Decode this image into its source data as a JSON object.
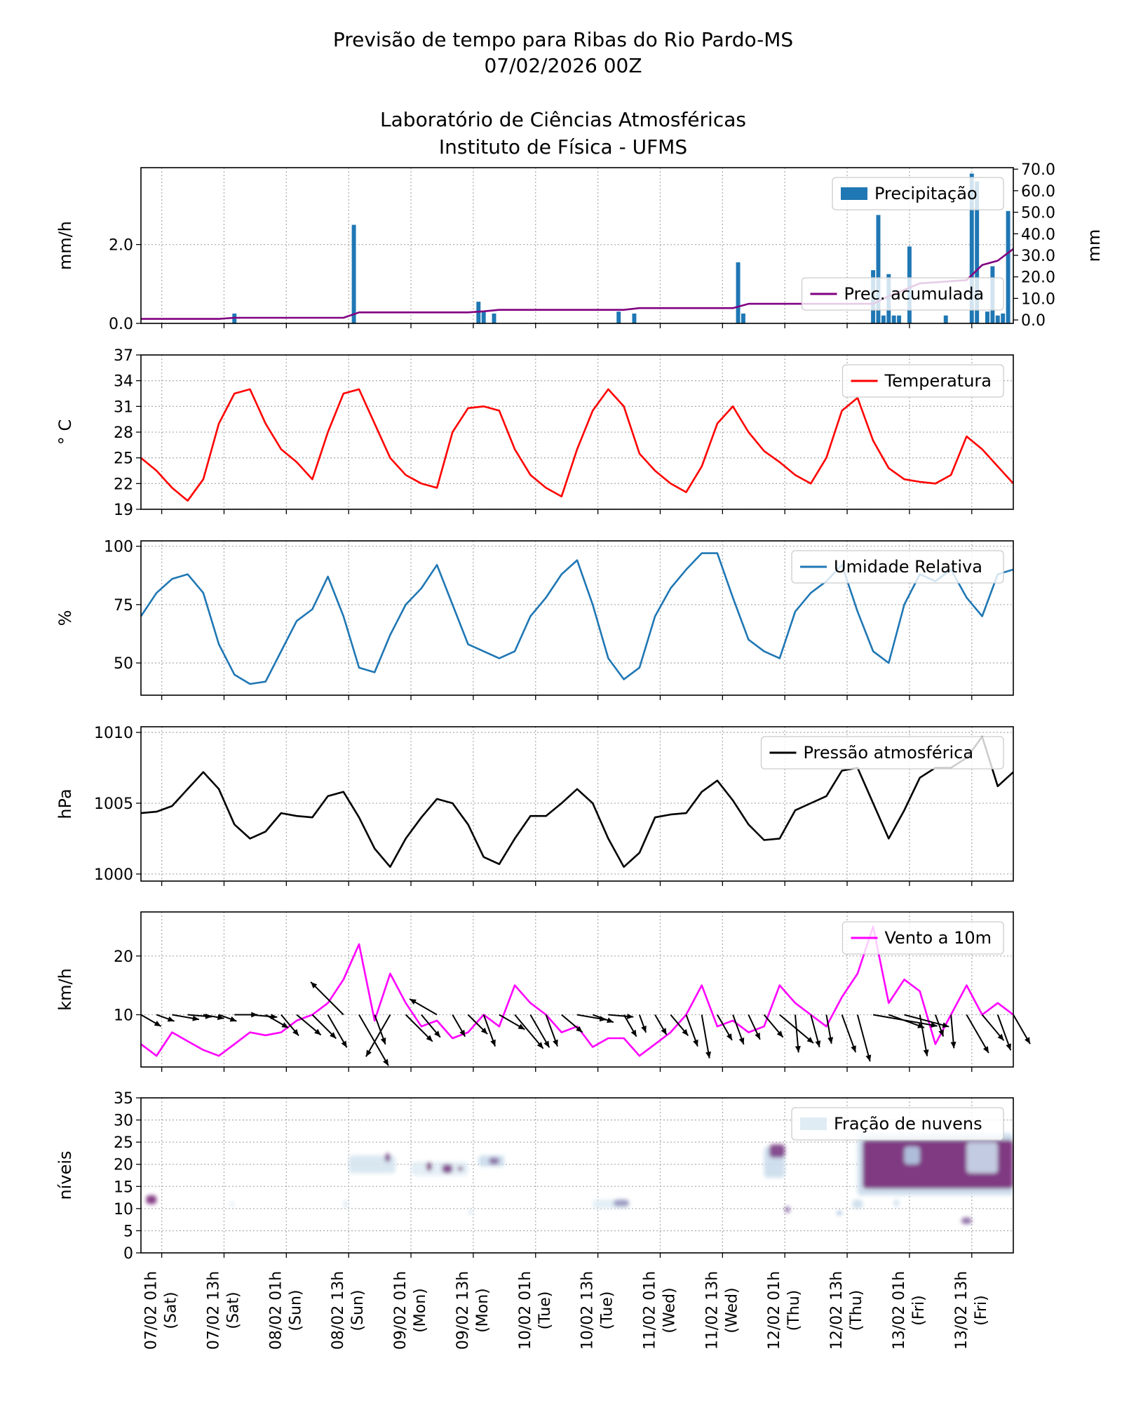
{
  "header": {
    "title_line1": "Previsão de tempo para Ribas do Rio Pardo-MS",
    "title_line2": "07/02/2026 00Z",
    "title_line3": "Laboratório de Ciências Atmosféricas",
    "title_line4": "Instituto de Física - UFMS"
  },
  "x_axis": {
    "range": [
      "06/02 21h",
      "13/02 21h"
    ],
    "ticks": [
      {
        "label": "07/02 01h",
        "day": "(Sat)"
      },
      {
        "label": "07/02 13h",
        "day": "(Sat)"
      },
      {
        "label": "08/02 01h",
        "day": "(Sun)"
      },
      {
        "label": "08/02 13h",
        "day": "(Sun)"
      },
      {
        "label": "09/02 01h",
        "day": "(Mon)"
      },
      {
        "label": "09/02 13h",
        "day": "(Mon)"
      },
      {
        "label": "10/02 01h",
        "day": "(Tue)"
      },
      {
        "label": "10/02 13h",
        "day": "(Tue)"
      },
      {
        "label": "11/02 01h",
        "day": "(Wed)"
      },
      {
        "label": "11/02 13h",
        "day": "(Wed)"
      },
      {
        "label": "12/02 01h",
        "day": "(Thu)"
      },
      {
        "label": "12/02 13h",
        "day": "(Thu)"
      },
      {
        "label": "13/02 01h",
        "day": "(Fri)"
      },
      {
        "label": "13/02 13h",
        "day": "(Fri)"
      }
    ]
  },
  "times": [
    "06/02 21h",
    "07/02 00h",
    "07/02 03h",
    "07/02 06h",
    "07/02 09h",
    "07/02 12h",
    "07/02 15h",
    "07/02 18h",
    "07/02 21h",
    "08/02 00h",
    "08/02 03h",
    "08/02 06h",
    "08/02 09h",
    "08/02 12h",
    "08/02 15h",
    "08/02 18h",
    "08/02 21h",
    "09/02 00h",
    "09/02 03h",
    "09/02 06h",
    "09/02 09h",
    "09/02 12h",
    "09/02 15h",
    "09/02 18h",
    "09/02 21h",
    "10/02 00h",
    "10/02 03h",
    "10/02 06h",
    "10/02 09h",
    "10/02 12h",
    "10/02 15h",
    "10/02 18h",
    "10/02 21h",
    "11/02 00h",
    "11/02 03h",
    "11/02 06h",
    "11/02 09h",
    "11/02 12h",
    "11/02 15h",
    "11/02 18h",
    "11/02 21h",
    "12/02 00h",
    "12/02 03h",
    "12/02 06h",
    "12/02 09h",
    "12/02 12h",
    "12/02 15h",
    "12/02 18h",
    "12/02 21h",
    "13/02 00h",
    "13/02 03h",
    "13/02 06h",
    "13/02 09h",
    "13/02 12h",
    "13/02 15h",
    "13/02 18h",
    "13/02 21h"
  ],
  "chart_data": [
    {
      "type": "bar",
      "ylabel": "mm/h",
      "ylabel_right": "mm",
      "ylim": [
        0,
        3.95
      ],
      "yticks": [
        "0.0",
        "2.0"
      ],
      "ylim_right": [
        -1.6,
        70.7
      ],
      "yticks_right": [
        "0.0",
        "10.0",
        "20.0",
        "30.0",
        "40.0",
        "50.0",
        "60.0",
        "70.0"
      ],
      "grid": true,
      "legend": [
        {
          "label": "Precipitação",
          "placement": "upper right",
          "color": "#1f77b4"
        },
        {
          "label": "Prec. acumulada",
          "placement": "lower right",
          "color": "#800080"
        }
      ],
      "bars": [
        {
          "time": "07/02 15h",
          "value": 0.25
        },
        {
          "time": "08/02 14h",
          "value": 2.5
        },
        {
          "time": "09/02 14h",
          "value": 0.55
        },
        {
          "time": "09/02 15h",
          "value": 0.3
        },
        {
          "time": "09/02 17h",
          "value": 0.25
        },
        {
          "time": "10/02 17h",
          "value": 0.3
        },
        {
          "time": "10/02 20h",
          "value": 0.25
        },
        {
          "time": "11/02 16h",
          "value": 1.55
        },
        {
          "time": "11/02 17h",
          "value": 0.25
        },
        {
          "time": "12/02 18h",
          "value": 1.35
        },
        {
          "time": "12/02 19h",
          "value": 2.75
        },
        {
          "time": "12/02 20h",
          "value": 0.2
        },
        {
          "time": "12/02 21h",
          "value": 1.25
        },
        {
          "time": "12/02 22h",
          "value": 0.2
        },
        {
          "time": "12/02 23h",
          "value": 0.2
        },
        {
          "time": "13/02 01h",
          "value": 1.95
        },
        {
          "time": "13/02 08h",
          "value": 0.2
        },
        {
          "time": "13/02 13h",
          "value": 3.8
        },
        {
          "time": "13/02 14h",
          "value": 3.6
        },
        {
          "time": "13/02 16h",
          "value": 0.3
        },
        {
          "time": "13/02 17h",
          "value": 1.45
        },
        {
          "time": "13/02 18h",
          "value": 0.2
        },
        {
          "time": "13/02 19h",
          "value": 0.25
        },
        {
          "time": "13/02 20h",
          "value": 2.85
        }
      ],
      "accumulated": [
        0.5,
        0.5,
        0.5,
        0.5,
        0.5,
        0.5,
        1,
        1,
        1,
        1,
        1,
        1,
        1,
        1,
        3.5,
        3.5,
        3.5,
        3.5,
        3.5,
        3.5,
        3.5,
        3.5,
        4,
        4.7,
        4.7,
        4.7,
        4.7,
        4.7,
        4.7,
        4.7,
        4.7,
        4.7,
        5.5,
        5.5,
        5.5,
        5.5,
        5.5,
        5.5,
        5.5,
        7.5,
        7.5,
        7.5,
        7.5,
        7.5,
        7.5,
        7.5,
        7.5,
        7.5,
        11,
        14,
        17,
        17.5,
        18,
        18.5,
        25.5,
        27.5,
        33
      ]
    },
    {
      "type": "line",
      "ylabel": "° C",
      "ylim": [
        19,
        37
      ],
      "yticks": [
        "19",
        "22",
        "25",
        "28",
        "31",
        "34",
        "37"
      ],
      "grid": true,
      "legend": [
        {
          "label": "Temperatura",
          "placement": "upper right",
          "color": "#ff0000"
        }
      ],
      "values": [
        25,
        23.5,
        21.5,
        20,
        22.5,
        29,
        32.5,
        33,
        29,
        26,
        24.5,
        22.5,
        28,
        32.5,
        33,
        29,
        25,
        23,
        22,
        21.5,
        28,
        30.8,
        31,
        30.5,
        26,
        23,
        21.5,
        20.5,
        26,
        30.5,
        33,
        31,
        25.5,
        23.5,
        22,
        21,
        24,
        29,
        31,
        28,
        25.8,
        24.5,
        23,
        22,
        25,
        30.5,
        32,
        27,
        23.8,
        22.5,
        22.2,
        22,
        23,
        27.5,
        26,
        24,
        22
      ]
    },
    {
      "type": "line",
      "ylabel": "%",
      "ylim": [
        36.2,
        102.3
      ],
      "yticks": [
        "50",
        "75",
        "100"
      ],
      "grid": true,
      "legend": [
        {
          "label": "Umidade Relativa",
          "placement": "upper right",
          "color": "#1f77b4"
        }
      ],
      "values": [
        70,
        80,
        86,
        88,
        80,
        58,
        45,
        41,
        42,
        55,
        68,
        73,
        87,
        70,
        48,
        46,
        62,
        75,
        82,
        92,
        75,
        58,
        55,
        52,
        55,
        70,
        78,
        88,
        94,
        75,
        52,
        43,
        48,
        70,
        82,
        90,
        97,
        97,
        78,
        60,
        55,
        52,
        72,
        80,
        85,
        92,
        72,
        55,
        50,
        75,
        88,
        85,
        90,
        78,
        70,
        88,
        90
      ]
    },
    {
      "type": "line",
      "ylabel": "hPa",
      "ylim": [
        999.5,
        1010.4
      ],
      "yticks": [
        "1000",
        "1005",
        "1010"
      ],
      "grid": true,
      "legend": [
        {
          "label": "Pressão atmosférica",
          "placement": "upper right",
          "color": "#000000"
        }
      ],
      "values": [
        1004.3,
        1004.4,
        1004.8,
        1006,
        1007.2,
        1006,
        1003.5,
        1002.5,
        1003,
        1004.3,
        1004.1,
        1004,
        1005.5,
        1005.8,
        1004,
        1001.8,
        1000.5,
        1002.5,
        1004,
        1005.3,
        1005,
        1003.5,
        1001.2,
        1000.7,
        1002.5,
        1004.1,
        1004.1,
        1005,
        1006,
        1005,
        1002.5,
        1000.5,
        1001.5,
        1004,
        1004.2,
        1004.3,
        1005.8,
        1006.6,
        1005.2,
        1003.5,
        1002.4,
        1002.5,
        1004.5,
        1005,
        1005.5,
        1007.3,
        1007.5,
        1005,
        1002.5,
        1004.5,
        1006.8,
        1007.5,
        1007.5,
        1008.2,
        1009.7,
        1006.2,
        1007.2
      ]
    },
    {
      "type": "line",
      "ylabel": "km/h",
      "ylim": [
        1.1,
        27.5
      ],
      "yticks": [
        "10",
        "20"
      ],
      "grid": true,
      "legend": [
        {
          "label": "Vento a 10m",
          "placement": "upper right",
          "color": "#ff00ff"
        }
      ],
      "values": [
        5,
        3,
        7,
        5.5,
        4,
        3,
        5,
        7,
        6.5,
        7,
        9,
        10,
        12,
        16,
        22,
        9,
        17,
        12,
        8,
        9,
        6,
        7,
        10,
        8,
        15,
        12,
        10,
        7,
        8,
        4.5,
        6,
        6,
        3,
        5,
        7,
        10,
        15,
        8,
        9,
        7,
        8,
        15,
        12,
        10,
        8,
        13,
        17,
        25,
        12,
        16,
        14,
        5,
        10,
        15,
        10,
        12,
        10
      ],
      "arrow_direction_deg": [
        120,
        110,
        100,
        95,
        100,
        110,
        90,
        95,
        120,
        140,
        130,
        135,
        150,
        315,
        150,
        160,
        210,
        135,
        140,
        300,
        150,
        135,
        160,
        120,
        140,
        150,
        160,
        130,
        100,
        110,
        95,
        150,
        160,
        150,
        140,
        160,
        170,
        150,
        160,
        155,
        140,
        130,
        175,
        165,
        170,
        160,
        165,
        100,
        110,
        105,
        170,
        160,
        175,
        150,
        140,
        160,
        150
      ]
    },
    {
      "type": "heatmap",
      "ylabel": "níveis",
      "ylim": [
        0,
        35
      ],
      "yticks": [
        "0",
        "5",
        "10",
        "15",
        "20",
        "25",
        "30",
        "35"
      ],
      "grid": true,
      "legend": [
        {
          "label": "Fração de nuvens",
          "placement": "upper right",
          "color": "#e0ecf4"
        }
      ],
      "patches": [
        {
          "from": "12/02 15h",
          "to": "13/02 21h",
          "levels": [
            13,
            27
          ],
          "fraction": 0.3
        },
        {
          "from": "12/02 16h",
          "to": "13/02 21h",
          "levels": [
            14.5,
            25.5
          ],
          "fraction": 0.85
        },
        {
          "from": "13/02 00h",
          "to": "13/02 03h",
          "levels": [
            20,
            24
          ],
          "fraction": 0.4
        },
        {
          "from": "13/02 12h",
          "to": "13/02 18h",
          "levels": [
            18,
            25
          ],
          "fraction": 0.3
        },
        {
          "from": "06/02 22h",
          "to": "07/02 00h",
          "levels": [
            11,
            13
          ],
          "fraction": 0.9
        },
        {
          "from": "07/02 14h",
          "to": "07/02 15h",
          "levels": [
            10.5,
            11.5
          ],
          "fraction": 0.2
        },
        {
          "from": "08/02 12h",
          "to": "08/02 13h",
          "levels": [
            10,
            12
          ],
          "fraction": 0.2
        },
        {
          "from": "08/02 13h",
          "to": "08/02 22h",
          "levels": [
            18,
            22
          ],
          "fraction": 0.25
        },
        {
          "from": "08/02 20h",
          "to": "08/02 21h",
          "levels": [
            20.5,
            22.5
          ],
          "fraction": 0.8
        },
        {
          "from": "09/02 01h",
          "to": "09/02 12h",
          "levels": [
            17.5,
            20.5
          ],
          "fraction": 0.2
        },
        {
          "from": "09/02 04h",
          "to": "09/02 05h",
          "levels": [
            18.5,
            20.5
          ],
          "fraction": 0.85
        },
        {
          "from": "09/02 07h",
          "to": "09/02 09h",
          "levels": [
            18,
            20
          ],
          "fraction": 0.8
        },
        {
          "from": "09/02 10h",
          "to": "09/02 11h",
          "levels": [
            18.5,
            19.5
          ],
          "fraction": 0.8
        },
        {
          "from": "09/02 12h",
          "to": "09/02 13h",
          "levels": [
            8.5,
            10
          ],
          "fraction": 0.2
        },
        {
          "from": "09/02 14h",
          "to": "09/02 19h",
          "levels": [
            19.5,
            22
          ],
          "fraction": 0.3
        },
        {
          "from": "09/02 16h",
          "to": "09/02 18h",
          "levels": [
            20,
            21.5
          ],
          "fraction": 0.7
        },
        {
          "from": "10/02 12h",
          "to": "10/02 19h",
          "levels": [
            10,
            12
          ],
          "fraction": 0.2
        },
        {
          "from": "10/02 16h",
          "to": "10/02 19h",
          "levels": [
            10.5,
            12
          ],
          "fraction": 0.6
        },
        {
          "from": "11/02 21h",
          "to": "12/02 01h",
          "levels": [
            17,
            24
          ],
          "fraction": 0.3
        },
        {
          "from": "11/02 22h",
          "to": "12/02 01h",
          "levels": [
            21.5,
            24.5
          ],
          "fraction": 0.8
        },
        {
          "from": "12/02 01h",
          "to": "12/02 02h",
          "levels": [
            9,
            10.5
          ],
          "fraction": 0.7
        },
        {
          "from": "12/02 11h",
          "to": "12/02 12h",
          "levels": [
            8.5,
            9.5
          ],
          "fraction": 0.5
        },
        {
          "from": "12/02 14h",
          "to": "12/02 16h",
          "levels": [
            10,
            12
          ],
          "fraction": 0.3
        },
        {
          "from": "12/02 22h",
          "to": "12/02 23h",
          "levels": [
            10.5,
            12
          ],
          "fraction": 0.3
        },
        {
          "from": "13/02 11h",
          "to": "13/02 13h",
          "levels": [
            6.5,
            8
          ],
          "fraction": 0.7
        }
      ]
    }
  ]
}
